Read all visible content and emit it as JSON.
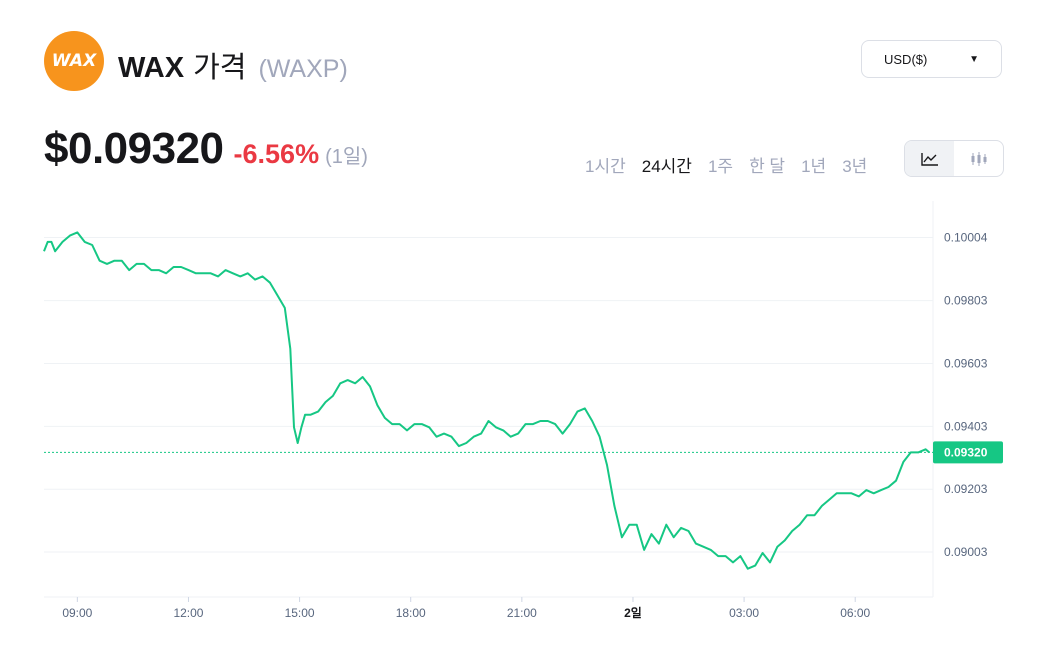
{
  "header": {
    "logo_text": "WAX",
    "coin_name": "WAX",
    "coin_label": "가격",
    "symbol": "(WAXP)",
    "logo_color": "#f7941d"
  },
  "currency_selector": {
    "label": "USD($)"
  },
  "price": {
    "value": "$0.09320",
    "change": "-6.56%",
    "period": "(1일)",
    "change_color": "#ea3943"
  },
  "time_ranges": [
    {
      "label": "1시간",
      "active": false
    },
    {
      "label": "24시간",
      "active": true
    },
    {
      "label": "1주",
      "active": false
    },
    {
      "label": "한 달",
      "active": false
    },
    {
      "label": "1년",
      "active": false
    },
    {
      "label": "3년",
      "active": false
    }
  ],
  "chart_toggle": {
    "line": "line-chart-icon",
    "candle": "candlestick-icon",
    "active": "line"
  },
  "chart_data": {
    "type": "line",
    "line_color": "#16c784",
    "current_price": 0.0932,
    "current_label": "0.09320",
    "ylim": [
      0.0886,
      0.1012
    ],
    "y_ticks": [
      "0.10004",
      "0.09803",
      "0.09603",
      "0.09403",
      "0.09203",
      "0.09003"
    ],
    "y_tick_values": [
      0.10004,
      0.09803,
      0.09603,
      0.09403,
      0.09203,
      0.09003
    ],
    "xlim": [
      8.1,
      32.1
    ],
    "x_ticks": [
      {
        "label": "09:00",
        "t": 9,
        "bold": false
      },
      {
        "label": "12:00",
        "t": 12,
        "bold": false
      },
      {
        "label": "15:00",
        "t": 15,
        "bold": false
      },
      {
        "label": "18:00",
        "t": 18,
        "bold": false
      },
      {
        "label": "21:00",
        "t": 21,
        "bold": false
      },
      {
        "label": "2일",
        "t": 24,
        "bold": true
      },
      {
        "label": "03:00",
        "t": 27,
        "bold": false
      },
      {
        "label": "06:00",
        "t": 30,
        "bold": false
      }
    ],
    "series": [
      {
        "x": [
          8.1,
          8.2,
          8.3,
          8.4,
          8.6,
          8.8,
          9.0,
          9.2,
          9.4,
          9.6,
          9.8,
          10.0,
          10.2,
          10.4,
          10.6,
          10.8,
          11.0,
          11.2,
          11.4,
          11.6,
          11.8,
          12.0,
          12.2,
          12.4,
          12.6,
          12.8,
          13.0,
          13.2,
          13.4,
          13.6,
          13.8,
          14.0,
          14.2,
          14.4,
          14.6,
          14.75,
          14.85,
          14.95,
          15.05,
          15.15,
          15.3,
          15.5,
          15.7,
          15.9,
          16.1,
          16.3,
          16.5,
          16.7,
          16.9,
          17.1,
          17.3,
          17.5,
          17.7,
          17.9,
          18.1,
          18.3,
          18.5,
          18.7,
          18.9,
          19.1,
          19.3,
          19.5,
          19.7,
          19.9,
          20.1,
          20.3,
          20.5,
          20.7,
          20.9,
          21.1,
          21.3,
          21.5,
          21.7,
          21.9,
          22.1,
          22.3,
          22.5,
          22.7,
          22.9,
          23.1,
          23.3,
          23.5,
          23.7,
          23.9,
          24.1,
          24.3,
          24.5,
          24.7,
          24.9,
          25.1,
          25.3,
          25.5,
          25.7,
          25.9,
          26.1,
          26.3,
          26.5,
          26.7,
          26.9,
          27.1,
          27.3,
          27.5,
          27.7,
          27.9,
          28.1,
          28.3,
          28.5,
          28.7,
          28.9,
          29.1,
          29.3,
          29.5,
          29.7,
          29.9,
          30.1,
          30.3,
          30.5,
          30.7,
          30.9,
          31.1,
          31.3,
          31.5,
          31.7,
          31.9,
          32.0
        ],
        "y": [
          0.0996,
          0.0999,
          0.0999,
          0.0996,
          0.0999,
          0.1001,
          0.1002,
          0.0999,
          0.0998,
          0.0993,
          0.0992,
          0.0993,
          0.0993,
          0.099,
          0.0992,
          0.0992,
          0.099,
          0.099,
          0.0989,
          0.0991,
          0.0991,
          0.099,
          0.0989,
          0.0989,
          0.0989,
          0.0988,
          0.099,
          0.0989,
          0.0988,
          0.0989,
          0.0987,
          0.0988,
          0.0986,
          0.0982,
          0.0978,
          0.0965,
          0.094,
          0.0935,
          0.094,
          0.0944,
          0.0944,
          0.0945,
          0.0948,
          0.095,
          0.0954,
          0.0955,
          0.0954,
          0.0956,
          0.0953,
          0.0947,
          0.0943,
          0.0941,
          0.0941,
          0.0939,
          0.0941,
          0.0941,
          0.094,
          0.0937,
          0.0938,
          0.0937,
          0.0934,
          0.0935,
          0.0937,
          0.0938,
          0.0942,
          0.094,
          0.0939,
          0.0937,
          0.0938,
          0.0941,
          0.0941,
          0.0942,
          0.0942,
          0.0941,
          0.0938,
          0.0941,
          0.0945,
          0.0946,
          0.0942,
          0.0937,
          0.0928,
          0.0915,
          0.0905,
          0.0909,
          0.0909,
          0.0901,
          0.0906,
          0.0903,
          0.0909,
          0.0905,
          0.0908,
          0.0907,
          0.0903,
          0.0902,
          0.0901,
          0.0899,
          0.0899,
          0.0897,
          0.0899,
          0.0895,
          0.0896,
          0.09,
          0.0897,
          0.0902,
          0.0904,
          0.0907,
          0.0909,
          0.0912,
          0.0912,
          0.0915,
          0.0917,
          0.0919,
          0.0919,
          0.0919,
          0.0918,
          0.092,
          0.0919,
          0.092,
          0.0921,
          0.0923,
          0.0929,
          0.0932,
          0.0932,
          0.0933,
          0.0932
        ]
      }
    ],
    "grid": true
  }
}
